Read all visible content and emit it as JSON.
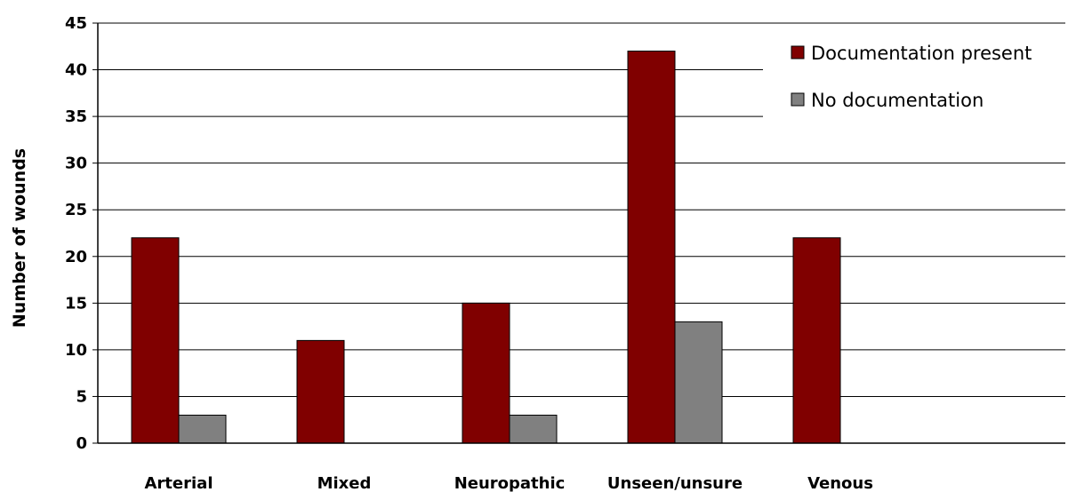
{
  "chart_data": {
    "type": "bar",
    "categories": [
      "Arterial",
      "Mixed",
      "Neuropathic",
      "Unseen/unsure",
      "Venous"
    ],
    "series": [
      {
        "name": "Documentation present",
        "values": [
          22,
          11,
          15,
          42,
          22
        ],
        "color": "#800000"
      },
      {
        "name": "No documentation",
        "values": [
          3,
          0,
          3,
          13,
          0
        ],
        "color": "#808080"
      }
    ],
    "ylabel": "Number of wounds",
    "xlabel": "",
    "ylim": [
      0,
      45
    ],
    "yticks": [
      0,
      5,
      10,
      15,
      20,
      25,
      30,
      35,
      40,
      45
    ],
    "grid": true,
    "legend_position": "top-right"
  }
}
